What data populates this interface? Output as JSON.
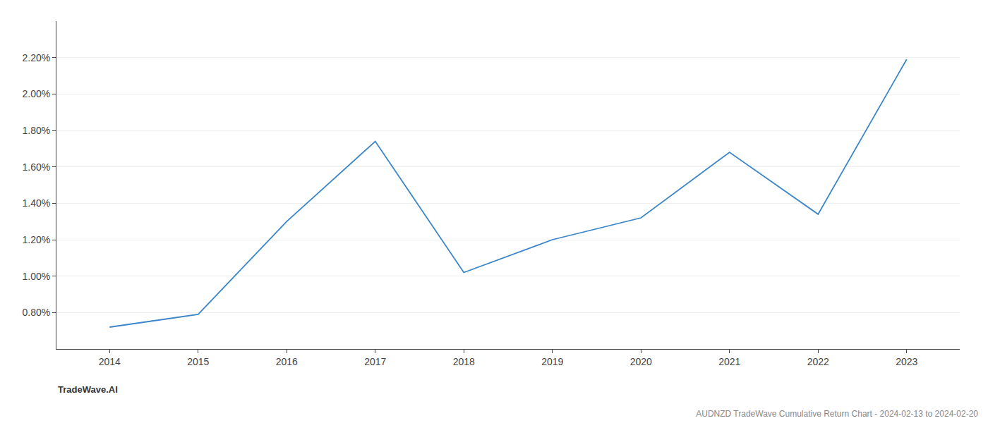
{
  "chart_data": {
    "type": "line",
    "title": "AUDNZD TradeWave Cumulative Return Chart - 2024-02-13 to 2024-02-20",
    "annotations": [
      "TradeWave.AI"
    ],
    "x": [
      2014,
      2015,
      2016,
      2017,
      2018,
      2019,
      2020,
      2021,
      2022,
      2023
    ],
    "values": [
      0.0072,
      0.0079,
      0.013,
      0.0174,
      0.0102,
      0.012,
      0.0132,
      0.0168,
      0.0134,
      0.0219
    ],
    "color": "#3a86c8",
    "xlim": [
      2013.4,
      2023.6
    ],
    "xticks": [
      2014,
      2015,
      2016,
      2017,
      2018,
      2019,
      2020,
      2021,
      2022,
      2023
    ],
    "ylim": [
      0.006,
      0.024
    ],
    "yticks": [
      {
        "value": 0.008,
        "label": "0.80%"
      },
      {
        "value": 0.01,
        "label": "1.00%"
      },
      {
        "value": 0.012,
        "label": "1.20%"
      },
      {
        "value": 0.014,
        "label": "1.40%"
      },
      {
        "value": 0.016,
        "label": "1.60%"
      },
      {
        "value": 0.018,
        "label": "1.80%"
      },
      {
        "value": 0.02,
        "label": "2.00%"
      },
      {
        "value": 0.022,
        "label": "2.20%"
      }
    ],
    "grid": true
  }
}
